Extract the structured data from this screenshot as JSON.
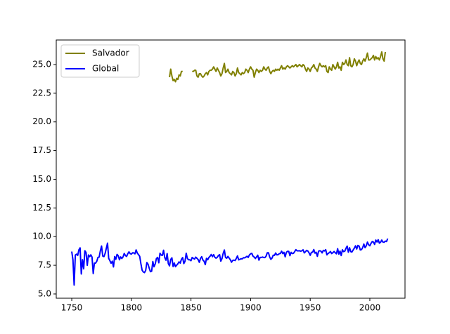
{
  "chart_data": {
    "type": "line",
    "x": [
      1750,
      1751,
      1752,
      1753,
      1754,
      1755,
      1756,
      1757,
      1758,
      1759,
      1760,
      1761,
      1762,
      1763,
      1764,
      1765,
      1766,
      1767,
      1768,
      1769,
      1770,
      1771,
      1772,
      1773,
      1774,
      1775,
      1776,
      1777,
      1778,
      1779,
      1780,
      1781,
      1782,
      1783,
      1784,
      1785,
      1786,
      1787,
      1788,
      1789,
      1790,
      1791,
      1792,
      1793,
      1794,
      1795,
      1796,
      1797,
      1798,
      1799,
      1800,
      1801,
      1802,
      1803,
      1804,
      1805,
      1806,
      1807,
      1808,
      1809,
      1810,
      1811,
      1812,
      1813,
      1814,
      1815,
      1816,
      1817,
      1818,
      1819,
      1820,
      1821,
      1822,
      1823,
      1824,
      1825,
      1826,
      1827,
      1828,
      1829,
      1830,
      1831,
      1832,
      1833,
      1834,
      1835,
      1836,
      1837,
      1838,
      1839,
      1840,
      1841,
      1842,
      1843,
      1844,
      1845,
      1846,
      1847,
      1848,
      1849,
      1850,
      1851,
      1852,
      1853,
      1854,
      1855,
      1856,
      1857,
      1858,
      1859,
      1860,
      1861,
      1862,
      1863,
      1864,
      1865,
      1866,
      1867,
      1868,
      1869,
      1870,
      1871,
      1872,
      1873,
      1874,
      1875,
      1876,
      1877,
      1878,
      1879,
      1880,
      1881,
      1882,
      1883,
      1884,
      1885,
      1886,
      1887,
      1888,
      1889,
      1890,
      1891,
      1892,
      1893,
      1894,
      1895,
      1896,
      1897,
      1898,
      1899,
      1900,
      1901,
      1902,
      1903,
      1904,
      1905,
      1906,
      1907,
      1908,
      1909,
      1910,
      1911,
      1912,
      1913,
      1914,
      1915,
      1916,
      1917,
      1918,
      1919,
      1920,
      1921,
      1922,
      1923,
      1924,
      1925,
      1926,
      1927,
      1928,
      1929,
      1930,
      1931,
      1932,
      1933,
      1934,
      1935,
      1936,
      1937,
      1938,
      1939,
      1940,
      1941,
      1942,
      1943,
      1944,
      1945,
      1946,
      1947,
      1948,
      1949,
      1950,
      1951,
      1952,
      1953,
      1954,
      1955,
      1956,
      1957,
      1958,
      1959,
      1960,
      1961,
      1962,
      1963,
      1964,
      1965,
      1966,
      1967,
      1968,
      1969,
      1970,
      1971,
      1972,
      1973,
      1974,
      1975,
      1976,
      1977,
      1978,
      1979,
      1980,
      1981,
      1982,
      1983,
      1984,
      1985,
      1986,
      1987,
      1988,
      1989,
      1990,
      1991,
      1992,
      1993,
      1994,
      1995,
      1996,
      1997,
      1998,
      1999,
      2000,
      2001,
      2002,
      2003,
      2004,
      2005,
      2006,
      2007,
      2008,
      2009,
      2010,
      2011,
      2012,
      2013,
      2014,
      2015
    ],
    "series": [
      {
        "name": "Salvador",
        "color": "#808000",
        "values": [
          null,
          null,
          null,
          null,
          null,
          null,
          null,
          null,
          null,
          null,
          null,
          null,
          null,
          null,
          null,
          null,
          null,
          null,
          null,
          null,
          null,
          null,
          null,
          null,
          null,
          null,
          null,
          null,
          null,
          null,
          null,
          null,
          null,
          null,
          null,
          null,
          null,
          null,
          null,
          null,
          null,
          null,
          null,
          null,
          null,
          null,
          null,
          null,
          null,
          null,
          null,
          null,
          null,
          null,
          null,
          null,
          null,
          null,
          null,
          null,
          null,
          null,
          null,
          null,
          null,
          null,
          null,
          null,
          null,
          null,
          null,
          null,
          null,
          null,
          null,
          null,
          null,
          null,
          null,
          null,
          null,
          null,
          23.9,
          24.6,
          24.0,
          23.6,
          23.7,
          23.5,
          23.8,
          23.7,
          24.1,
          24.0,
          24.4,
          24.4,
          null,
          null,
          null,
          null,
          null,
          null,
          null,
          24.4,
          24.4,
          24.5,
          24.5,
          24.0,
          23.9,
          24.2,
          24.2,
          24.0,
          23.9,
          24.0,
          24.2,
          24.3,
          24.1,
          24.4,
          24.5,
          24.5,
          24.6,
          24.8,
          24.6,
          24.4,
          24.7,
          24.5,
          24.3,
          24.0,
          24.2,
          24.7,
          25.1,
          24.3,
          24.4,
          24.6,
          24.3,
          24.2,
          24.1,
          24.4,
          24.3,
          24.0,
          24.2,
          24.7,
          24.3,
          24.2,
          24.1,
          24.3,
          24.2,
          24.3,
          24.6,
          24.5,
          24.3,
          24.6,
          24.8,
          24.6,
          24.5,
          23.9,
          24.3,
          24.6,
          24.5,
          24.3,
          24.5,
          24.4,
          24.5,
          24.8,
          24.6,
          24.5,
          24.7,
          24.8,
          24.4,
          24.2,
          24.4,
          24.5,
          24.4,
          24.6,
          24.5,
          24.6,
          24.5,
          24.7,
          24.9,
          24.6,
          24.7,
          24.6,
          24.8,
          24.9,
          24.8,
          24.7,
          24.8,
          24.9,
          24.8,
          24.9,
          25.0,
          24.8,
          24.9,
          25.0,
          24.9,
          24.8,
          25.0,
          24.9,
          24.6,
          24.4,
          24.7,
          24.6,
          24.4,
          24.7,
          24.8,
          25.0,
          24.7,
          24.6,
          24.4,
          24.8,
          25.1,
          24.9,
          24.8,
          24.9,
          24.8,
          24.9,
          24.4,
          24.3,
          24.8,
          24.6,
          24.5,
          25.0,
          24.8,
          24.6,
          24.8,
          25.2,
          24.7,
          24.8,
          24.5,
          25.2,
          25.0,
          25.1,
          25.4,
          25.0,
          24.9,
          25.6,
          24.9,
          24.8,
          25.0,
          25.5,
          25.3,
          24.9,
          25.2,
          25.4,
          25.1,
          25.0,
          25.3,
          25.5,
          25.3,
          25.6,
          26.0,
          25.4,
          25.4,
          25.5,
          25.6,
          25.8,
          25.4,
          25.7,
          25.5,
          25.6,
          25.4,
          25.7,
          26.1,
          25.5,
          25.3,
          26.1,
          null,
          null
        ]
      },
      {
        "name": "Global",
        "color": "#0000ff",
        "values": [
          8.7,
          7.98,
          5.78,
          8.39,
          8.47,
          8.36,
          8.85,
          9.02,
          6.74,
          7.99,
          7.19,
          8.77,
          8.61,
          7.5,
          8.4,
          8.25,
          8.41,
          8.22,
          6.78,
          7.69,
          7.69,
          7.85,
          8.19,
          8.22,
          8.77,
          9.18,
          8.3,
          8.26,
          8.54,
          8.98,
          9.43,
          8.1,
          7.9,
          7.68,
          7.86,
          7.36,
          8.26,
          8.03,
          8.45,
          8.33,
          7.98,
          8.23,
          8.09,
          8.23,
          8.53,
          8.35,
          8.27,
          8.51,
          8.67,
          8.51,
          8.48,
          8.59,
          8.58,
          8.5,
          8.84,
          8.56,
          8.43,
          8.28,
          7.63,
          7.08,
          6.92,
          6.86,
          7.05,
          7.74,
          7.59,
          7.24,
          6.94,
          6.98,
          7.83,
          7.37,
          7.62,
          8.09,
          8.19,
          7.72,
          8.55,
          8.39,
          8.36,
          8.81,
          8.17,
          7.94,
          8.52,
          7.64,
          7.45,
          8.01,
          8.15,
          7.39,
          7.7,
          7.38,
          7.51,
          7.63,
          7.8,
          7.69,
          8.02,
          8.17,
          7.65,
          7.85,
          8.55,
          8.09,
          7.98,
          7.98,
          7.9,
          8.18,
          8.1,
          8.04,
          8.21,
          8.11,
          8.0,
          7.76,
          8.1,
          8.25,
          7.96,
          7.85,
          7.56,
          8.11,
          7.98,
          8.18,
          8.29,
          8.44,
          8.25,
          8.43,
          8.2,
          8.12,
          8.19,
          8.35,
          8.43,
          7.86,
          8.08,
          8.54,
          8.83,
          8.17,
          8.12,
          8.27,
          8.13,
          7.98,
          7.77,
          7.92,
          7.95,
          7.91,
          8.09,
          8.32,
          7.97,
          8.02,
          8.07,
          8.06,
          8.16,
          8.15,
          8.21,
          8.29,
          8.18,
          8.4,
          8.5,
          8.54,
          8.3,
          8.22,
          8.09,
          8.23,
          8.38,
          7.95,
          8.19,
          8.18,
          8.22,
          8.18,
          8.17,
          8.3,
          8.59,
          8.59,
          8.23,
          8.02,
          8.13,
          8.38,
          8.36,
          8.57,
          8.41,
          8.42,
          8.51,
          8.53,
          8.73,
          8.52,
          8.63,
          8.24,
          8.63,
          8.72,
          8.71,
          8.34,
          8.63,
          8.52,
          8.55,
          8.7,
          8.86,
          8.76,
          8.76,
          8.77,
          8.73,
          8.76,
          8.85,
          8.58,
          8.68,
          8.8,
          8.75,
          8.59,
          8.37,
          8.63,
          8.64,
          8.87,
          8.56,
          8.63,
          8.28,
          8.73,
          8.77,
          8.73,
          8.58,
          8.8,
          8.75,
          8.86,
          8.41,
          8.53,
          8.6,
          8.7,
          8.52,
          8.6,
          8.7,
          8.6,
          8.5,
          8.95,
          8.47,
          8.74,
          8.35,
          8.85,
          8.69,
          8.73,
          8.98,
          9.17,
          8.64,
          9.03,
          8.69,
          8.66,
          8.83,
          8.99,
          9.2,
          8.92,
          9.23,
          9.18,
          8.84,
          8.87,
          9.04,
          9.35,
          9.04,
          9.2,
          9.52,
          9.29,
          9.2,
          9.41,
          9.57,
          9.53,
          9.32,
          9.7,
          9.53,
          9.73,
          9.43,
          9.51,
          9.7,
          9.52,
          9.51,
          9.61,
          9.57,
          9.83
        ]
      }
    ],
    "xlim": [
      1737,
      2029.5
    ],
    "ylim": [
      4.63,
      27.14
    ],
    "xticks": [
      1750,
      1800,
      1850,
      1900,
      1950,
      2000
    ],
    "yticks": [
      {
        "value": 5,
        "label": "5.0"
      },
      7.5,
      {
        "value": 10,
        "label": "10.0"
      },
      12.5,
      {
        "value": 15,
        "label": "15.0"
      },
      17.5,
      {
        "value": 20,
        "label": "20.0"
      },
      22.5,
      {
        "value": 25,
        "label": "25.0"
      }
    ],
    "legend": "upper left"
  }
}
